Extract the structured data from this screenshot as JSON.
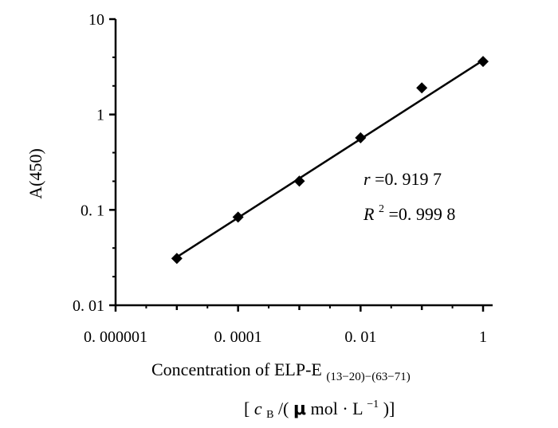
{
  "chart_data": {
    "type": "scatter",
    "x_scale": "log",
    "y_scale": "log",
    "xlim": [
      1e-06,
      1
    ],
    "ylim": [
      0.01,
      10
    ],
    "x_ticks": [
      1e-06,
      0.0001,
      0.01,
      1
    ],
    "x_tick_labels": [
      "0. 000001",
      "0. 0001",
      "0. 01",
      "1"
    ],
    "y_ticks": [
      0.01,
      0.1,
      1,
      10
    ],
    "y_tick_labels": [
      "0. 01",
      "0. 1",
      "1",
      "10"
    ],
    "ylabel": "A(450)",
    "xlabel_main": "Concentration of ELP-E",
    "xlabel_subscript": "(13−20)−(63−71)",
    "xlabel_unit_open": "[",
    "xlabel_unit_c": "c",
    "xlabel_unit_sub": "B",
    "xlabel_unit_mid": "/(",
    "xlabel_unit_mu": "μ",
    "xlabel_unit_mol": "mol",
    "xlabel_unit_dot": "·",
    "xlabel_unit_L": "L",
    "xlabel_unit_sup": "−1",
    "xlabel_unit_close": ")]",
    "grid": false,
    "series": [
      {
        "marker": "diamond",
        "x": [
          1e-05,
          0.0001,
          0.001,
          0.01,
          0.1,
          1
        ],
        "y": [
          0.031,
          0.084,
          0.2,
          0.57,
          1.9,
          3.6
        ]
      }
    ],
    "fit_line": {
      "x": [
        1e-05,
        1
      ],
      "y": [
        0.032,
        3.7
      ]
    },
    "annotations": {
      "r_symbol": "r",
      "r_value": "=0. 919 7",
      "R_symbol": "R",
      "R_sup": "2",
      "R_value": "=0. 999 8"
    },
    "color": "#000000"
  }
}
